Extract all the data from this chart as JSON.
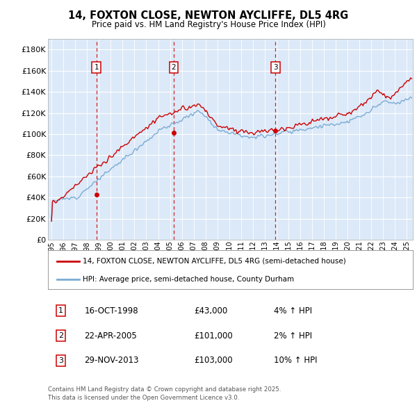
{
  "title": "14, FOXTON CLOSE, NEWTON AYCLIFFE, DL5 4RG",
  "subtitle": "Price paid vs. HM Land Registry's House Price Index (HPI)",
  "ylabel_ticks": [
    "£0",
    "£20K",
    "£40K",
    "£60K",
    "£80K",
    "£100K",
    "£120K",
    "£140K",
    "£160K",
    "£180K"
  ],
  "ytick_values": [
    0,
    20000,
    40000,
    60000,
    80000,
    100000,
    120000,
    140000,
    160000,
    180000
  ],
  "ylim": [
    0,
    190000
  ],
  "xlim_start": 1994.7,
  "xlim_end": 2025.5,
  "background_color": "#dce9f8",
  "sale_color": "#cc0000",
  "hpi_color": "#7aabd4",
  "sale_label": "14, FOXTON CLOSE, NEWTON AYCLIFFE, DL5 4RG (semi-detached house)",
  "hpi_label": "HPI: Average price, semi-detached house, County Durham",
  "transactions": [
    {
      "num": 1,
      "date": "16-OCT-1998",
      "price": 43000,
      "pct": "4%",
      "dir": "↑",
      "x": 1998.79
    },
    {
      "num": 2,
      "date": "22-APR-2005",
      "price": 101000,
      "pct": "2%",
      "dir": "↑",
      "x": 2005.31
    },
    {
      "num": 3,
      "date": "29-NOV-2013",
      "price": 103000,
      "pct": "10%",
      "dir": "↑",
      "x": 2013.91
    }
  ],
  "footer_line1": "Contains HM Land Registry data © Crown copyright and database right 2025.",
  "footer_line2": "This data is licensed under the Open Government Licence v3.0."
}
